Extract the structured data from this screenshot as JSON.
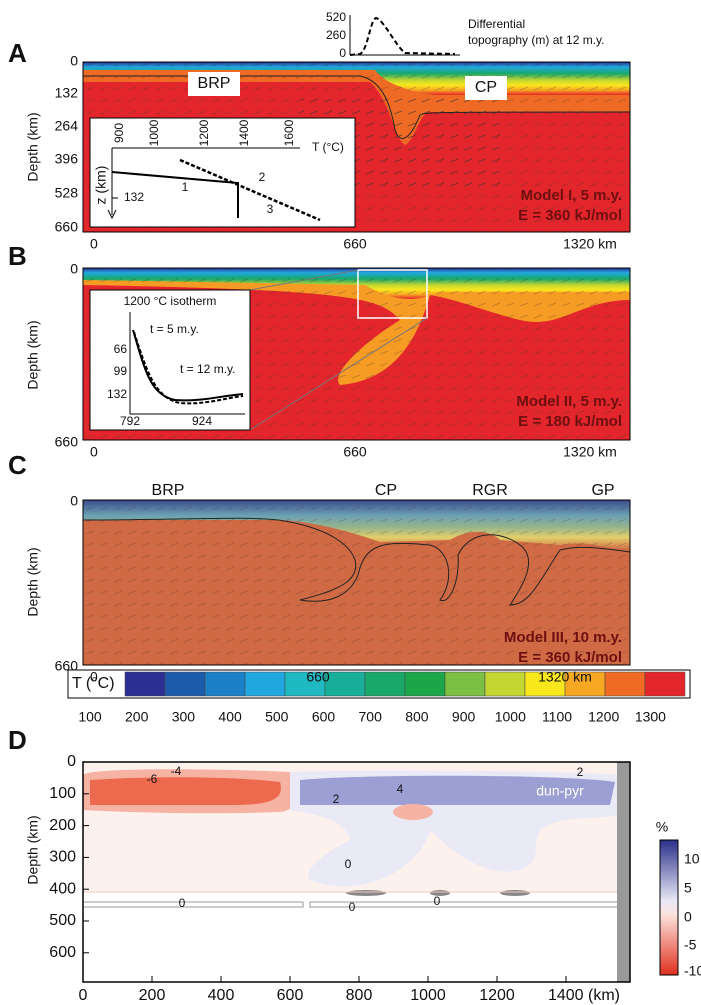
{
  "panel_a": {
    "letter": "A",
    "y_label": "Depth (km)",
    "y_ticks": [
      "0",
      "132",
      "264",
      "396",
      "528",
      "660"
    ],
    "x_ticks": [
      "0",
      "660",
      "1320 km"
    ],
    "regions": [
      "BRP",
      "CP"
    ],
    "model": "Model I, 5 m.y.",
    "energy": "E = 360 kJ/mol",
    "topography": {
      "ticks": [
        "520",
        "260",
        "0"
      ],
      "label": [
        "Differential",
        "topography (m) at 12 m.y."
      ]
    },
    "inset": {
      "x_ticks": [
        "900",
        "1000",
        "1200",
        "1400",
        "1600"
      ],
      "x_label": "T (°C)",
      "y_label": "z (km)",
      "y_tick": "132",
      "curves": [
        "1",
        "2",
        "3"
      ]
    }
  },
  "panel_b": {
    "letter": "B",
    "y_label": "Depth (km)",
    "y_ticks": [
      "0",
      "660"
    ],
    "x_ticks": [
      "0",
      "660",
      "1320 km"
    ],
    "model": "Model II, 5 m.y.",
    "energy": "E = 180 kJ/mol",
    "inset": {
      "title": "1200 °C isotherm",
      "y_ticks": [
        "66",
        "99",
        "132"
      ],
      "x_ticks": [
        "792",
        "924"
      ],
      "curves": [
        "t = 5 m.y.",
        "t = 12 m.y."
      ]
    }
  },
  "panel_c": {
    "letter": "C",
    "y_label": "Depth (km)",
    "y_ticks": [
      "0",
      "660"
    ],
    "x_ticks": [
      "0",
      "660",
      "1320 km"
    ],
    "regions": [
      "BRP",
      "CP",
      "RGR",
      "GP"
    ],
    "model": "Model III, 10 m.y.",
    "energy": "E = 360 kJ/mol"
  },
  "temperature_scale": {
    "label": "T (°C)",
    "ticks": [
      "100",
      "200",
      "300",
      "400",
      "500",
      "600",
      "700",
      "800",
      "900",
      "1000",
      "1100",
      "1200",
      "1300"
    ],
    "colors": [
      "#2b2f93",
      "#1c5bab",
      "#1b80c8",
      "#21a7e0",
      "#1fb9c2",
      "#17ae9a",
      "#19a86a",
      "#1ca64a",
      "#7bbf43",
      "#c3d631",
      "#f8e71c",
      "#f7a823",
      "#ef6b25",
      "#e3262b"
    ]
  },
  "panel_d": {
    "letter": "D",
    "y_label": "Depth (km)",
    "y_ticks": [
      "0",
      "100",
      "200",
      "300",
      "400",
      "500",
      "600"
    ],
    "x_ticks": [
      "0",
      "200",
      "400",
      "600",
      "800",
      "1000",
      "1200",
      "1400 (km)"
    ],
    "contour_labels": [
      "-6",
      "-4",
      "2",
      "4",
      "2",
      "0",
      "0",
      "0",
      "0"
    ],
    "annotation": "dun-pyr",
    "scale": {
      "label": "%",
      "ticks": [
        "10",
        "5",
        "0",
        "-5",
        "-10"
      ]
    }
  }
}
